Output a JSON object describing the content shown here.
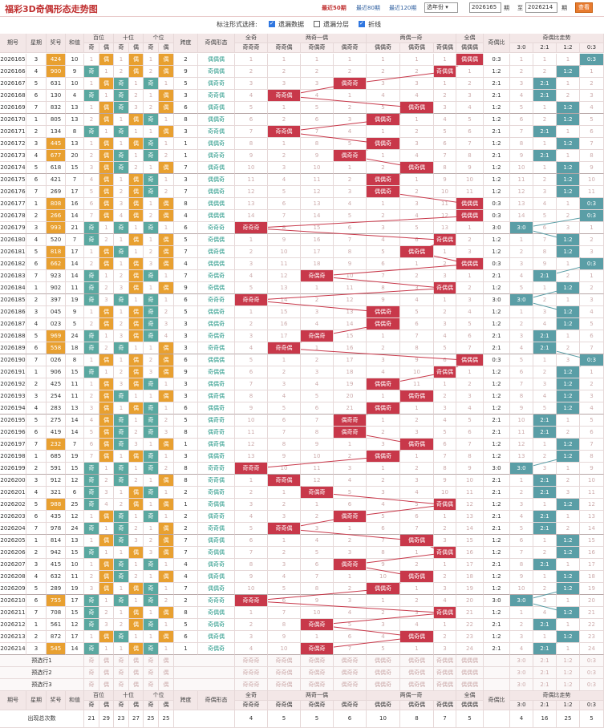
{
  "header": {
    "title": "福彩3D奇偶形态走势图",
    "links": [
      "最近50期",
      "最近80期",
      "最近120期"
    ],
    "active_link": 0,
    "year_select": "选年份",
    "from_label": "期",
    "to_label": "至",
    "from": "2026165",
    "to": "2026214",
    "to_suffix": "期",
    "query": "查看"
  },
  "options": {
    "label": "标注形式选择:",
    "items": [
      {
        "label": "遗漏数据",
        "checked": true
      },
      {
        "label": "遗漏分层",
        "checked": false
      },
      {
        "label": "折线",
        "checked": true
      }
    ]
  },
  "columns": {
    "issue": "期号",
    "week": "星期",
    "prize": "奖号",
    "sum": "和值",
    "hundreds": "百位",
    "tens": "十位",
    "units": "个位",
    "span": "跨度",
    "shape": "奇偶形态",
    "all_odd": "全奇",
    "two_odd_one_even": "两奇一偶",
    "two_even_one_odd": "两偶一奇",
    "all_even": "全偶",
    "ratio": "奇偶比",
    "ratio_trend": "奇偶比走势",
    "odd": "奇",
    "even": "偶"
  },
  "shape_groups": {
    "all_odd": [
      "奇奇奇"
    ],
    "two_odd": [
      "奇奇偶",
      "奇偶奇",
      "偶奇奇"
    ],
    "two_even": [
      "偶偶奇",
      "偶奇偶",
      "奇偶偶"
    ],
    "all_even": [
      "偶偶偶"
    ],
    "ratios": [
      "3:0",
      "2:1",
      "1:2",
      "0:3"
    ]
  },
  "rows": [
    {
      "issue": "2026165",
      "week": "3",
      "num": "424",
      "sum": "10",
      "span": "2",
      "shape": "偶偶偶",
      "ratio": "0:3"
    },
    {
      "issue": "2026166",
      "week": "4",
      "num": "900",
      "sum": "9",
      "span": "9",
      "shape": "奇偶偶",
      "ratio": "1:2"
    },
    {
      "issue": "2026167",
      "week": "5",
      "num": "631",
      "sum": "10",
      "span": "5",
      "shape": "偶奇奇",
      "ratio": "2:1"
    },
    {
      "issue": "2026168",
      "week": "6",
      "num": "130",
      "sum": "4",
      "span": "3",
      "shape": "奇奇偶",
      "ratio": "2:1"
    },
    {
      "issue": "2026169",
      "week": "7",
      "num": "832",
      "sum": "13",
      "span": "6",
      "shape": "偶奇偶",
      "ratio": "1:2"
    },
    {
      "issue": "2026170",
      "week": "1",
      "num": "805",
      "sum": "13",
      "span": "8",
      "shape": "偶偶奇",
      "ratio": "1:2"
    },
    {
      "issue": "2026171",
      "week": "2",
      "num": "134",
      "sum": "8",
      "span": "3",
      "shape": "奇奇偶",
      "ratio": "2:1"
    },
    {
      "issue": "2026172",
      "week": "3",
      "num": "445",
      "sum": "13",
      "span": "1",
      "shape": "偶偶奇",
      "ratio": "1:2"
    },
    {
      "issue": "2026173",
      "week": "4",
      "num": "677",
      "sum": "20",
      "span": "1",
      "shape": "偶奇奇",
      "ratio": "2:1"
    },
    {
      "issue": "2026174",
      "week": "5",
      "num": "618",
      "span": "7",
      "sum": "15",
      "shape": "偶奇偶",
      "ratio": "1:2"
    },
    {
      "issue": "2026175",
      "week": "6",
      "num": "421",
      "sum": "7",
      "span": "3",
      "shape": "偶偶奇",
      "ratio": "1:2"
    },
    {
      "issue": "2026176",
      "week": "7",
      "num": "269",
      "sum": "17",
      "span": "7",
      "shape": "偶偶奇",
      "ratio": "1:2"
    },
    {
      "issue": "2026177",
      "week": "1",
      "num": "808",
      "sum": "16",
      "span": "8",
      "shape": "偶偶偶",
      "ratio": "0:3"
    },
    {
      "issue": "2026178",
      "week": "2",
      "num": "266",
      "sum": "14",
      "span": "4",
      "shape": "偶偶偶",
      "ratio": "0:3"
    },
    {
      "issue": "2026179",
      "week": "3",
      "num": "993",
      "sum": "21",
      "span": "6",
      "shape": "奇奇奇",
      "ratio": "3:0"
    },
    {
      "issue": "2026180",
      "week": "4",
      "num": "520",
      "sum": "7",
      "span": "5",
      "shape": "奇偶偶",
      "ratio": "1:2"
    },
    {
      "issue": "2026181",
      "week": "5",
      "num": "818",
      "sum": "17",
      "span": "7",
      "shape": "偶奇偶",
      "ratio": "1:2"
    },
    {
      "issue": "2026182",
      "week": "6",
      "num": "662",
      "sum": "14",
      "span": "4",
      "shape": "偶偶偶",
      "ratio": "0:3"
    },
    {
      "issue": "2026183",
      "week": "7",
      "num": "923",
      "sum": "14",
      "span": "7",
      "shape": "奇偶奇",
      "ratio": "2:1"
    },
    {
      "issue": "2026184",
      "week": "1",
      "num": "902",
      "sum": "11",
      "span": "9",
      "shape": "奇偶偶",
      "ratio": "1:2"
    },
    {
      "issue": "2026185",
      "week": "2",
      "num": "397",
      "sum": "19",
      "span": "6",
      "shape": "奇奇奇",
      "ratio": "3:0"
    },
    {
      "issue": "2026186",
      "week": "3",
      "num": "045",
      "sum": "9",
      "span": "5",
      "shape": "偶偶奇",
      "ratio": "1:2"
    },
    {
      "issue": "2026187",
      "week": "4",
      "num": "023",
      "sum": "5",
      "span": "3",
      "shape": "偶偶奇",
      "ratio": "1:2"
    },
    {
      "issue": "2026188",
      "week": "5",
      "num": "969",
      "sum": "24",
      "span": "3",
      "shape": "奇偶奇",
      "ratio": "2:1"
    },
    {
      "issue": "2026189",
      "week": "6",
      "num": "558",
      "sum": "18",
      "span": "3",
      "shape": "奇奇偶",
      "ratio": "2:1"
    },
    {
      "issue": "2026190",
      "week": "7",
      "num": "026",
      "sum": "8",
      "span": "6",
      "shape": "偶偶偶",
      "ratio": "0:3"
    },
    {
      "issue": "2026191",
      "week": "1",
      "num": "906",
      "sum": "15",
      "span": "9",
      "shape": "奇偶偶",
      "ratio": "1:2"
    },
    {
      "issue": "2026192",
      "week": "2",
      "num": "425",
      "sum": "11",
      "span": "3",
      "shape": "偶偶奇",
      "ratio": "1:2"
    },
    {
      "issue": "2026193",
      "week": "3",
      "num": "254",
      "sum": "11",
      "span": "3",
      "shape": "偶奇偶",
      "ratio": "1:2"
    },
    {
      "issue": "2026194",
      "week": "4",
      "num": "283",
      "sum": "13",
      "span": "6",
      "shape": "偶偶奇",
      "ratio": "1:2"
    },
    {
      "issue": "2026195",
      "week": "5",
      "num": "275",
      "sum": "14",
      "span": "5",
      "shape": "偶奇奇",
      "ratio": "2:1"
    },
    {
      "issue": "2026196",
      "week": "6",
      "num": "419",
      "sum": "14",
      "span": "8",
      "shape": "偶奇奇",
      "ratio": "2:1"
    },
    {
      "issue": "2026197",
      "week": "7",
      "num": "232",
      "sum": "7",
      "span": "1",
      "shape": "偶奇偶",
      "ratio": "1:2"
    },
    {
      "issue": "2026198",
      "week": "1",
      "num": "685",
      "sum": "19",
      "span": "3",
      "shape": "偶偶奇",
      "ratio": "1:2"
    },
    {
      "issue": "2026199",
      "week": "2",
      "num": "591",
      "sum": "15",
      "span": "8",
      "shape": "奇奇奇",
      "ratio": "3:0"
    },
    {
      "issue": "2026200",
      "week": "3",
      "num": "912",
      "sum": "12",
      "span": "8",
      "shape": "奇奇偶",
      "ratio": "2:1"
    },
    {
      "issue": "2026201",
      "week": "4",
      "num": "321",
      "sum": "6",
      "span": "2",
      "shape": "奇偶奇",
      "ratio": "2:1"
    },
    {
      "issue": "2026202",
      "week": "5",
      "num": "988",
      "sum": "25",
      "span": "1",
      "shape": "奇偶偶",
      "ratio": "1:2"
    },
    {
      "issue": "2026203",
      "week": "6",
      "num": "435",
      "sum": "12",
      "span": "2",
      "shape": "偶奇奇",
      "ratio": "2:1"
    },
    {
      "issue": "2026204",
      "week": "7",
      "num": "978",
      "sum": "24",
      "span": "2",
      "shape": "奇奇偶",
      "ratio": "2:1"
    },
    {
      "issue": "2026205",
      "week": "1",
      "num": "814",
      "sum": "13",
      "span": "7",
      "shape": "偶奇偶",
      "ratio": "1:2"
    },
    {
      "issue": "2026206",
      "week": "2",
      "num": "942",
      "sum": "15",
      "span": "7",
      "shape": "奇偶偶",
      "ratio": "1:2"
    },
    {
      "issue": "2026207",
      "week": "3",
      "num": "415",
      "sum": "10",
      "span": "4",
      "shape": "偶奇奇",
      "ratio": "2:1"
    },
    {
      "issue": "2026208",
      "week": "4",
      "num": "632",
      "sum": "11",
      "span": "4",
      "shape": "偶奇偶",
      "ratio": "1:2"
    },
    {
      "issue": "2026209",
      "week": "5",
      "num": "289",
      "sum": "19",
      "span": "7",
      "shape": "偶偶奇",
      "ratio": "1:2"
    },
    {
      "issue": "2026210",
      "week": "6",
      "num": "755",
      "sum": "17",
      "span": "2",
      "shape": "奇奇奇",
      "ratio": "3:0"
    },
    {
      "issue": "2026211",
      "week": "7",
      "num": "708",
      "sum": "15",
      "span": "8",
      "shape": "奇偶偶",
      "ratio": "1:2"
    },
    {
      "issue": "2026212",
      "week": "1",
      "num": "561",
      "sum": "12",
      "span": "5",
      "shape": "奇偶奇",
      "ratio": "2:1"
    },
    {
      "issue": "2026213",
      "week": "2",
      "num": "872",
      "sum": "17",
      "span": "6",
      "shape": "偶奇偶",
      "ratio": "1:2"
    },
    {
      "issue": "2026214",
      "week": "3",
      "num": "545",
      "sum": "14",
      "span": "1",
      "shape": "奇偶奇",
      "ratio": "2:1"
    }
  ],
  "picked_issues": [
    "2026165",
    "2026166",
    "2026172",
    "2026173",
    "2026177",
    "2026178",
    "2026179",
    "2026181",
    "2026182",
    "2026188",
    "2026189",
    "2026197",
    "2026202",
    "2026210",
    "2026214"
  ],
  "preselect": [
    "预选行1",
    "预选行2",
    "预选行3"
  ],
  "footer": {
    "counts_label": "出现总次数",
    "pos_counts": [
      "21",
      "29",
      "23",
      "27",
      "25",
      "25"
    ],
    "shape_counts": [
      "4",
      "5",
      "5",
      "6",
      "10",
      "8",
      "7",
      "5"
    ],
    "ratio_counts": [
      "4",
      "16",
      "25",
      "5"
    ]
  },
  "colors": {
    "accent": "#c8384a",
    "odd_mark": "#5aa8a0",
    "even_mark": "#e8a030",
    "ratio_mark": "#5a9ea6"
  }
}
